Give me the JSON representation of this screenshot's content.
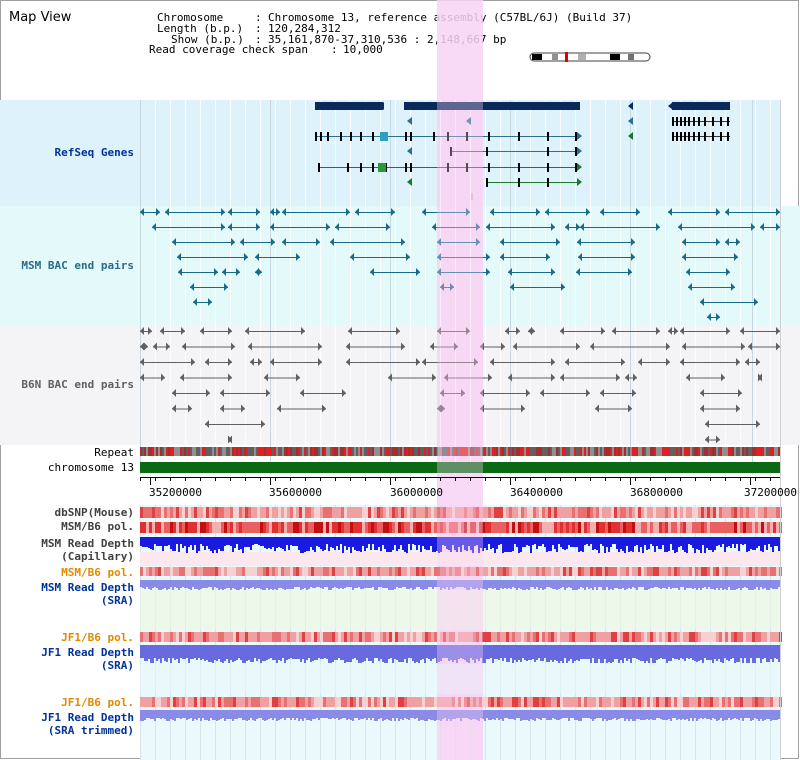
{
  "header": {
    "map_title": "Map View",
    "chromosome_label": "Chromosome",
    "chromosome_value": "Chromosome 13, reference assembly (C57BL/6J) (Build 37)",
    "length_label": "Length (b.p.)",
    "length_value": "120,284,312",
    "show_label": "Show (b.p.)",
    "show_value": "35,161,870-37,310,536 : 2,148,667 bp",
    "coverage_label": "Read coverage check span",
    "coverage_value": "10,000",
    "separator": ":"
  },
  "tracks": {
    "refseq_genes": "RefSeq Genes",
    "msm_bac": "MSM BAC end pairs",
    "b6n_bac": "B6N BAC end pairs",
    "repeat": "Repeat",
    "chromosome": "chromosome 13",
    "dbsnp": "dbSNP(Mouse)",
    "msm_b6_pol": "MSM/B6 pol.",
    "msm_read_depth_cap_1": "MSM Read Depth",
    "msm_read_depth_cap_2": "(Capillary)",
    "msm_b6_pol_2": "MSM/B6 pol.",
    "msm_read_depth_sra_1": "MSM Read Depth",
    "msm_read_depth_sra_2": "(SRA)",
    "jf1_b6_pol": "JF1/B6 pol.",
    "jf1_read_depth_sra_1": "JF1 Read Depth",
    "jf1_read_depth_sra_2": "(SRA)",
    "jf1_b6_pol_2": "JF1/B6 pol.",
    "jf1_read_depth_trim_1": "JF1 Read Depth",
    "jf1_read_depth_trim_2": "(SRA trimmed)"
  },
  "axis": {
    "ticks": [
      "35200000",
      "35600000",
      "36000000",
      "36400000",
      "36800000",
      "37200000"
    ]
  },
  "colors": {
    "refseq_bg": "#def2fb",
    "msm_bac_bg": "#e4fafa",
    "b6n_bg": "#f4f4f6",
    "highlight": "#f8d4f4",
    "gene_dark": "#0a2a5c",
    "gene_line": "#2a7090",
    "gene_green": "#1a7a2a",
    "msm_pair": "#1a6a8a",
    "b6n_pair": "#606060",
    "chromosome_bar": "#0a6a14",
    "label_blue": "#00339a",
    "label_orange": "#e08a00",
    "depth_blue": "#1a1ae0",
    "depth_light": "#8a8ae8",
    "pol_red": "#e85050"
  },
  "icons": {
    "chromosome_ideogram": "chromosome-ideogram-icon"
  }
}
